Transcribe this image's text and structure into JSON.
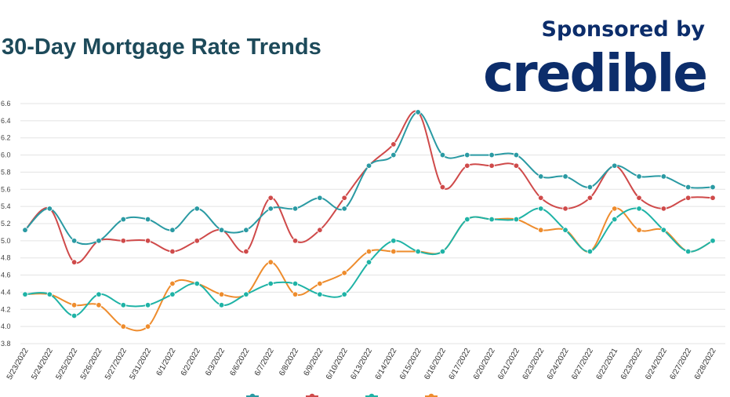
{
  "header": {
    "title": "30-Day Mortgage Rate Trends",
    "sponsor_text": "Sponsored by",
    "logo_text": "credible"
  },
  "colors": {
    "title": "#1d4a5a",
    "brand": "#0c2d6b",
    "series": [
      "#2a9aa3",
      "#cf4a4a",
      "#1fb3a6",
      "#ee8c2d"
    ]
  },
  "chart_data": {
    "type": "line",
    "title": "30-Day Mortgage Rate Trends",
    "x": [
      "5/23/2022",
      "5/24/2022",
      "5/25/2022",
      "5/26/2022",
      "5/27/2022",
      "5/31/2022",
      "6/1/2022",
      "6/2/2022",
      "6/3/2022",
      "6/6/2022",
      "6/7/2022",
      "6/8/2022",
      "6/9/2022",
      "6/10/2022",
      "6/13/2022",
      "6/14/2022",
      "6/15/2022",
      "6/16/2022",
      "6/17/2022",
      "6/20/2022",
      "6/21/2022",
      "6/23/2022",
      "6/24/2022",
      "6/27/2022",
      "6/22/2021",
      "6/23/2022",
      "6/24/2022",
      "6/27/2022",
      "6/28/2022"
    ],
    "y_ticks": [
      "6.6",
      "6.4",
      "6.2",
      "6.0",
      "5.8",
      "5.6",
      "5.4",
      "5.2",
      "5.0",
      "4.8",
      "4.6",
      "4.4",
      "4.2",
      "4.0",
      "3.8"
    ],
    "ylim": [
      3.8,
      6.6
    ],
    "grid": true,
    "legend_position": "bottom",
    "series": [
      {
        "values": [
          5.125,
          5.375,
          5.0,
          5.0,
          5.25,
          5.25,
          5.125,
          5.375,
          5.125,
          5.125,
          5.375,
          5.375,
          5.5,
          5.375,
          5.875,
          6.0,
          6.5,
          6.0,
          6.0,
          6.0,
          6.0,
          5.75,
          5.75,
          5.625,
          5.875,
          5.75,
          5.75,
          5.625,
          5.625
        ]
      },
      {
        "values": [
          5.125,
          5.375,
          4.75,
          5.0,
          5.0,
          5.0,
          4.875,
          5.0,
          5.125,
          4.875,
          5.5,
          5.0,
          5.125,
          5.5,
          5.875,
          6.125,
          6.5,
          5.625,
          5.875,
          5.875,
          5.875,
          5.5,
          5.375,
          5.5,
          5.875,
          5.5,
          5.375,
          5.5,
          5.5
        ]
      },
      {
        "values": [
          4.375,
          4.375,
          4.125,
          4.375,
          4.25,
          4.25,
          4.375,
          4.5,
          4.25,
          4.375,
          4.5,
          4.5,
          4.375,
          4.375,
          4.75,
          5.0,
          4.875,
          4.875,
          5.25,
          5.25,
          5.25,
          5.375,
          5.125,
          4.875,
          5.25,
          5.375,
          5.125,
          4.875,
          5.0
        ]
      },
      {
        "values": [
          4.375,
          4.375,
          4.25,
          4.25,
          4.0,
          4.0,
          4.5,
          4.5,
          4.375,
          4.375,
          4.75,
          4.375,
          4.5,
          4.625,
          4.875,
          4.875,
          4.875,
          4.875,
          5.25,
          5.25,
          5.25,
          5.125,
          5.125,
          4.875,
          5.375,
          5.125,
          5.125,
          4.875,
          5.0
        ]
      }
    ]
  }
}
